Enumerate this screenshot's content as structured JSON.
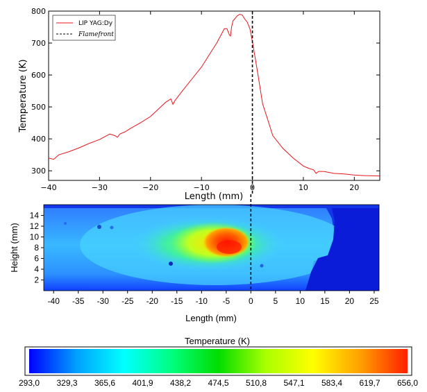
{
  "chart_data": [
    {
      "type": "line",
      "xlabel": "Length (mm)",
      "ylabel": "Temperature (K)",
      "xlim": [
        -40,
        25
      ],
      "ylim": [
        270,
        800
      ],
      "xticks": [
        -40,
        -30,
        -20,
        -10,
        0,
        10,
        20
      ],
      "xtick_labels": [
        "−40",
        "−30",
        "−20",
        "−10",
        "0",
        "10",
        "20"
      ],
      "yticks": [
        300,
        400,
        500,
        600,
        700,
        800
      ],
      "ytick_labels": [
        "300",
        "400",
        "500",
        "600",
        "700",
        "800"
      ],
      "legend_position": "top-left",
      "series": [
        {
          "name": "LIP YAG:Dy",
          "color": "#e8141c",
          "style": "solid",
          "x": [
            -40,
            -39,
            -38,
            -36,
            -34,
            -32,
            -30,
            -28,
            -27,
            -26.5,
            -26,
            -25,
            -24,
            -22,
            -20,
            -19,
            -18,
            -17,
            -16,
            -15.6,
            -15.2,
            -14,
            -12,
            -10,
            -9,
            -8,
            -7,
            -6,
            -5.5,
            -5,
            -4.5,
            -4.3,
            -4.1,
            -3.8,
            -3.5,
            -3,
            -2.5,
            -2,
            -1.5,
            -1,
            -0.5,
            0,
            1,
            2,
            3,
            4,
            6,
            8,
            10,
            11,
            12,
            12.5,
            13,
            14,
            16,
            18,
            20,
            22,
            25
          ],
          "y": [
            340,
            336,
            350,
            360,
            372,
            386,
            398,
            415,
            410,
            405,
            415,
            422,
            432,
            450,
            470,
            485,
            500,
            515,
            525,
            508,
            520,
            545,
            585,
            625,
            650,
            675,
            700,
            730,
            745,
            745,
            725,
            722,
            750,
            770,
            775,
            785,
            790,
            788,
            775,
            765,
            745,
            705,
            610,
            510,
            460,
            410,
            370,
            340,
            315,
            308,
            303,
            292,
            298,
            298,
            292,
            290,
            287,
            285,
            284
          ]
        },
        {
          "name": "Flamefront",
          "color": "#000000",
          "style": "dashed",
          "x": [
            0,
            0
          ],
          "y": [
            270,
            800
          ]
        }
      ]
    },
    {
      "type": "heatmap",
      "xlabel": "Length (mm)",
      "ylabel": "Height (mm)",
      "xlim": [
        -42,
        26
      ],
      "ylim": [
        0,
        16
      ],
      "xticks": [
        -40,
        -35,
        -30,
        -25,
        -20,
        -15,
        -10,
        -5,
        0,
        5,
        10,
        15,
        20,
        25
      ],
      "xtick_labels": [
        "-40",
        "-35",
        "-30",
        "-25",
        "-20",
        "-15",
        "-10",
        "-5",
        "0",
        "5",
        "10",
        "15",
        "20",
        "25"
      ],
      "yticks": [
        2,
        4,
        6,
        8,
        10,
        12,
        14
      ],
      "ytick_labels": [
        "2",
        "4",
        "6",
        "8",
        "10",
        "12",
        "14"
      ],
      "flamefront_x": 0,
      "hotspot_center": [
        -5,
        8
      ],
      "hotspot_value": 656.0
    }
  ],
  "colorbar": {
    "title": "Temperature (K)",
    "min": 293.0,
    "max": 656.0,
    "tick_labels": [
      "293,0",
      "329,3",
      "365,6",
      "401,9",
      "438,2",
      "474,5",
      "510,8",
      "547,1",
      "583,4",
      "619,7",
      "656,0"
    ],
    "colors": [
      "#0000ff",
      "#00a0ff",
      "#00ffff",
      "#00ff80",
      "#00dd00",
      "#a8ff00",
      "#ffff00",
      "#ffa000",
      "#ff2000"
    ]
  }
}
